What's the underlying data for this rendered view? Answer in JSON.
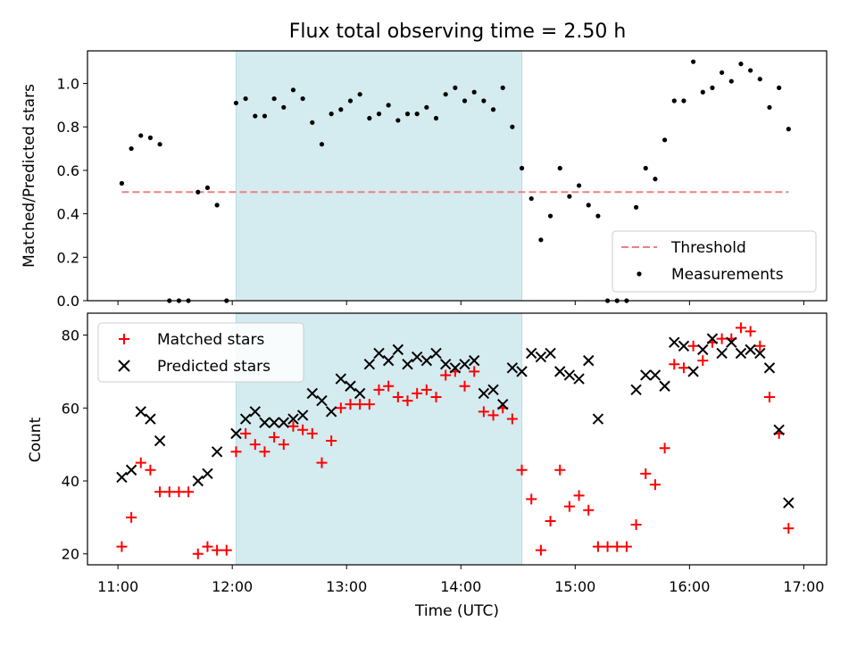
{
  "title": "Flux total observing time = 2.50 h",
  "chart_data": [
    {
      "type": "scatter",
      "ylabel": "Matched/Predicted stars",
      "ylim": [
        0,
        1.15
      ],
      "xlim": [
        "10:44",
        "17:12"
      ],
      "yticks": [
        0.0,
        0.2,
        0.4,
        0.6,
        0.8,
        1.0
      ],
      "ytick_labels": [
        "0.0",
        "0.2",
        "0.4",
        "0.6",
        "0.8",
        "1.0"
      ],
      "threshold": {
        "name": "Threshold",
        "value": 0.5,
        "x_start": "11:02",
        "x_end": "16:52",
        "color": "#f08080"
      },
      "shaded_interval": {
        "start": "12:02",
        "end": "14:32",
        "color": "#d4ebf0"
      },
      "legend": {
        "position": "lower-right",
        "entries": [
          "Threshold",
          "Measurements"
        ]
      },
      "series": [
        {
          "name": "Measurements",
          "marker": "dot",
          "color": "#000000",
          "x": [
            "11:02",
            "11:07",
            "11:12",
            "11:17",
            "11:22",
            "11:27",
            "11:32",
            "11:37",
            "11:42",
            "11:47",
            "11:52",
            "11:57",
            "12:02",
            "12:07",
            "12:12",
            "12:17",
            "12:22",
            "12:27",
            "12:32",
            "12:37",
            "12:42",
            "12:47",
            "12:52",
            "12:57",
            "13:02",
            "13:07",
            "13:12",
            "13:17",
            "13:22",
            "13:27",
            "13:32",
            "13:37",
            "13:42",
            "13:47",
            "13:52",
            "13:57",
            "14:02",
            "14:07",
            "14:12",
            "14:17",
            "14:22",
            "14:27",
            "14:32",
            "14:37",
            "14:42",
            "14:47",
            "14:52",
            "14:57",
            "15:02",
            "15:07",
            "15:12",
            "15:17",
            "15:22",
            "15:27",
            "15:32",
            "15:37",
            "15:42",
            "15:47",
            "15:52",
            "15:57",
            "16:02",
            "16:07",
            "16:12",
            "16:17",
            "16:22",
            "16:27",
            "16:32",
            "16:37",
            "16:42",
            "16:47",
            "16:52"
          ],
          "y": [
            0.54,
            0.7,
            0.76,
            0.75,
            0.72,
            0.0,
            0.0,
            0.0,
            0.5,
            0.52,
            0.44,
            0.0,
            0.91,
            0.93,
            0.85,
            0.85,
            0.93,
            0.89,
            0.97,
            0.93,
            0.82,
            0.72,
            0.86,
            0.88,
            0.92,
            0.95,
            0.84,
            0.86,
            0.9,
            0.83,
            0.86,
            0.86,
            0.89,
            0.84,
            0.95,
            0.98,
            0.92,
            0.96,
            0.92,
            0.88,
            0.98,
            0.8,
            0.61,
            0.47,
            0.28,
            0.39,
            0.61,
            0.48,
            0.53,
            0.44,
            0.39,
            0.0,
            0.0,
            0.0,
            0.43,
            0.61,
            0.56,
            0.74,
            0.92,
            0.92,
            1.1,
            0.96,
            0.98,
            1.05,
            1.01,
            1.09,
            1.06,
            1.02,
            0.89,
            0.98,
            0.79
          ]
        }
      ]
    },
    {
      "type": "scatter",
      "xlabel": "Time (UTC)",
      "ylabel": "Count",
      "ylim": [
        17,
        86
      ],
      "xlim": [
        "10:44",
        "17:12"
      ],
      "xticks": [
        "11:00",
        "12:00",
        "13:00",
        "14:00",
        "15:00",
        "16:00",
        "17:00"
      ],
      "yticks": [
        20,
        40,
        60,
        80
      ],
      "ytick_labels": [
        "20",
        "40",
        "60",
        "80"
      ],
      "shaded_interval": {
        "start": "12:02",
        "end": "14:32",
        "color": "#d4ebf0"
      },
      "legend": {
        "position": "upper-left",
        "entries": [
          "Matched stars",
          "Predicted stars"
        ]
      },
      "series": [
        {
          "name": "Matched stars",
          "marker": "plus",
          "color": "#ff0000",
          "x": [
            "11:02",
            "11:07",
            "11:12",
            "11:17",
            "11:22",
            "11:27",
            "11:32",
            "11:37",
            "11:42",
            "11:47",
            "11:52",
            "11:57",
            "12:02",
            "12:07",
            "12:12",
            "12:17",
            "12:22",
            "12:27",
            "12:32",
            "12:37",
            "12:42",
            "12:47",
            "12:52",
            "12:57",
            "13:02",
            "13:07",
            "13:12",
            "13:17",
            "13:22",
            "13:27",
            "13:32",
            "13:37",
            "13:42",
            "13:47",
            "13:52",
            "13:57",
            "14:02",
            "14:07",
            "14:12",
            "14:17",
            "14:22",
            "14:27",
            "14:32",
            "14:37",
            "14:42",
            "14:47",
            "14:52",
            "14:57",
            "15:02",
            "15:07",
            "15:12",
            "15:17",
            "15:22",
            "15:27",
            "15:32",
            "15:37",
            "15:42",
            "15:47",
            "15:52",
            "15:57",
            "16:02",
            "16:07",
            "16:12",
            "16:17",
            "16:22",
            "16:27",
            "16:32",
            "16:37",
            "16:42",
            "16:47",
            "16:52"
          ],
          "y": [
            22,
            30,
            45,
            43,
            37,
            37,
            37,
            37,
            20,
            22,
            21,
            21,
            48,
            53,
            50,
            48,
            52,
            50,
            55,
            54,
            53,
            45,
            51,
            60,
            61,
            61,
            61,
            65,
            66,
            63,
            62,
            64,
            65,
            63,
            69,
            70,
            66,
            70,
            59,
            58,
            60,
            57,
            43,
            35,
            21,
            29,
            43,
            33,
            36,
            32,
            22,
            22,
            22,
            22,
            28,
            42,
            39,
            49,
            72,
            71,
            77,
            73,
            78,
            79,
            79,
            82,
            81,
            77,
            63,
            53,
            27
          ]
        },
        {
          "name": "Predicted stars",
          "marker": "x",
          "color": "#000000",
          "x": [
            "11:02",
            "11:07",
            "11:12",
            "11:17",
            "11:22",
            "11:42",
            "11:47",
            "11:52",
            "12:02",
            "12:07",
            "12:12",
            "12:17",
            "12:22",
            "12:27",
            "12:32",
            "12:37",
            "12:42",
            "12:47",
            "12:52",
            "12:57",
            "13:02",
            "13:07",
            "13:12",
            "13:17",
            "13:22",
            "13:27",
            "13:32",
            "13:37",
            "13:42",
            "13:47",
            "13:52",
            "13:57",
            "14:02",
            "14:07",
            "14:12",
            "14:17",
            "14:22",
            "14:27",
            "14:32",
            "14:37",
            "14:42",
            "14:47",
            "14:52",
            "14:57",
            "15:02",
            "15:07",
            "15:12",
            "15:32",
            "15:37",
            "15:42",
            "15:47",
            "15:52",
            "15:57",
            "16:02",
            "16:07",
            "16:12",
            "16:17",
            "16:22",
            "16:27",
            "16:32",
            "16:37",
            "16:42",
            "16:47",
            "16:52"
          ],
          "y": [
            41,
            43,
            59,
            57,
            51,
            40,
            42,
            48,
            53,
            57,
            59,
            56,
            56,
            56,
            57,
            58,
            64,
            62,
            59,
            68,
            66,
            64,
            72,
            75,
            73,
            76,
            72,
            74,
            73,
            75,
            72,
            71,
            72,
            73,
            64,
            65,
            61,
            71,
            70,
            75,
            74,
            75,
            70,
            69,
            68,
            73,
            57,
            65,
            69,
            69,
            66,
            78,
            77,
            70,
            76,
            79,
            75,
            78,
            75,
            76,
            75,
            71,
            54,
            34
          ]
        }
      ]
    }
  ]
}
